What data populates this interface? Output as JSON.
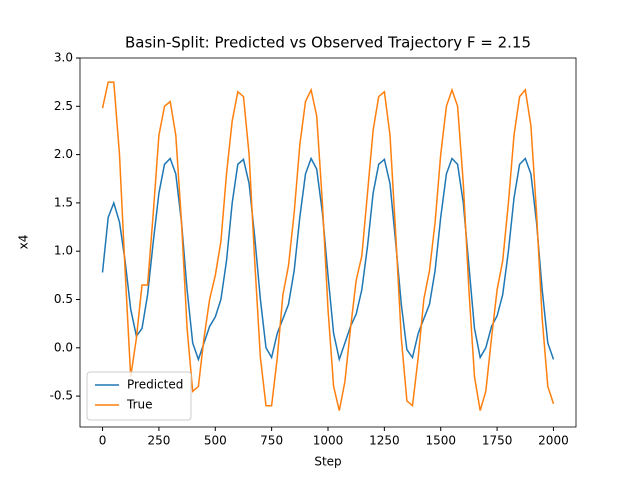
{
  "chart_data": {
    "type": "line",
    "title": "Basin-Split: Predicted vs Observed Trajectory F = 2.15",
    "x_label": "Step",
    "y_label": "x4",
    "x": [
      0,
      25,
      50,
      75,
      100,
      125,
      150,
      175,
      200,
      225,
      250,
      275,
      300,
      325,
      350,
      375,
      400,
      425,
      450,
      475,
      500,
      525,
      550,
      575,
      600,
      625,
      650,
      675,
      700,
      725,
      750,
      775,
      800,
      825,
      850,
      875,
      900,
      925,
      950,
      975,
      1000,
      1025,
      1050,
      1075,
      1100,
      1125,
      1150,
      1175,
      1200,
      1225,
      1250,
      1275,
      1300,
      1325,
      1350,
      1375,
      1400,
      1425,
      1450,
      1475,
      1500,
      1525,
      1550,
      1575,
      1600,
      1625,
      1650,
      1675,
      1700,
      1725,
      1750,
      1775,
      1800,
      1825,
      1850,
      1875,
      1900,
      1925,
      1950,
      1975,
      2000
    ],
    "series": [
      {
        "name": "Predicted",
        "color": "#1f77b4",
        "values": [
          0.78,
          1.35,
          1.5,
          1.3,
          0.9,
          0.4,
          0.12,
          0.2,
          0.55,
          1.1,
          1.6,
          1.9,
          1.96,
          1.8,
          1.3,
          0.6,
          0.05,
          -0.12,
          0.05,
          0.22,
          0.32,
          0.5,
          0.9,
          1.5,
          1.9,
          1.95,
          1.7,
          1.15,
          0.5,
          0.0,
          -0.1,
          0.15,
          0.3,
          0.45,
          0.8,
          1.35,
          1.8,
          1.96,
          1.85,
          1.4,
          0.75,
          0.15,
          -0.12,
          0.05,
          0.22,
          0.35,
          0.6,
          1.05,
          1.6,
          1.9,
          1.95,
          1.7,
          1.1,
          0.45,
          -0.02,
          -0.1,
          0.15,
          0.3,
          0.45,
          0.8,
          1.35,
          1.8,
          1.96,
          1.9,
          1.5,
          0.85,
          0.2,
          -0.1,
          0.0,
          0.22,
          0.33,
          0.55,
          1.0,
          1.55,
          1.9,
          1.96,
          1.8,
          1.3,
          0.6,
          0.05,
          -0.12
        ]
      },
      {
        "name": "True",
        "color": "#ff7f0e",
        "values": [
          2.48,
          2.75,
          2.75,
          2.0,
          0.8,
          -0.3,
          0.1,
          0.65,
          0.65,
          1.4,
          2.2,
          2.5,
          2.55,
          2.2,
          1.3,
          0.2,
          -0.45,
          -0.4,
          0.1,
          0.5,
          0.75,
          1.1,
          1.8,
          2.35,
          2.65,
          2.6,
          2.0,
          0.9,
          -0.1,
          -0.6,
          -0.6,
          -0.1,
          0.55,
          0.85,
          1.4,
          2.1,
          2.55,
          2.67,
          2.4,
          1.5,
          0.4,
          -0.4,
          -0.65,
          -0.35,
          0.2,
          0.7,
          0.95,
          1.6,
          2.25,
          2.6,
          2.65,
          2.2,
          1.2,
          0.1,
          -0.55,
          -0.6,
          -0.1,
          0.5,
          0.8,
          1.3,
          2.0,
          2.5,
          2.67,
          2.5,
          1.7,
          0.6,
          -0.3,
          -0.65,
          -0.45,
          0.1,
          0.6,
          0.9,
          1.5,
          2.2,
          2.6,
          2.67,
          2.3,
          1.4,
          0.3,
          -0.4,
          -0.58
        ]
      }
    ],
    "xlim": [
      -100,
      2100
    ],
    "ylim": [
      -0.82,
      3.0
    ],
    "xticks": [
      0,
      250,
      500,
      750,
      1000,
      1250,
      1500,
      1750,
      2000
    ],
    "yticks": [
      -0.5,
      {
        "value": 0,
        "label": "0.0"
      },
      0.5,
      {
        "value": 1,
        "label": "1.0"
      },
      1.5,
      {
        "value": 2,
        "label": "2.0"
      },
      2.5,
      {
        "value": 3,
        "label": "3.0"
      }
    ],
    "legend": "lower left",
    "grid": false
  }
}
